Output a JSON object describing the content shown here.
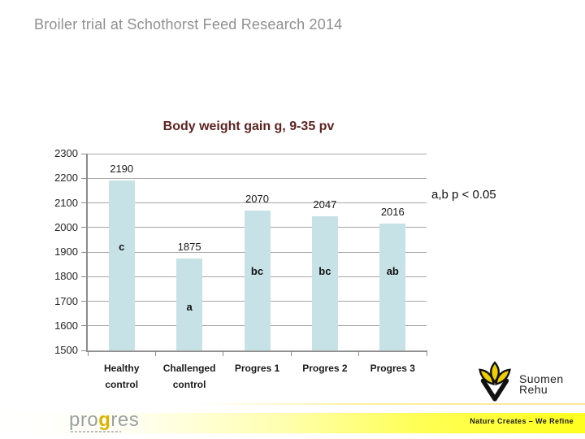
{
  "slide": {
    "title": "Broiler trial at Schothorst Feed Research 2014"
  },
  "chart_data": {
    "type": "bar",
    "title": "Body weight gain g, 9-35 pv",
    "categories": [
      "Healthy control",
      "Challenged control",
      "Progres 1",
      "Progres 2",
      "Progres 3"
    ],
    "category_lines": [
      [
        "Healthy",
        "control"
      ],
      [
        "Challenged",
        "control"
      ],
      [
        "Progres 1"
      ],
      [
        "Progres 2"
      ],
      [
        "Progres 3"
      ]
    ],
    "values": [
      2190,
      1875,
      2070,
      2047,
      2016
    ],
    "bar_labels": [
      "2190",
      "1875",
      "2070",
      "2047",
      "2016"
    ],
    "significance_letters": [
      "c",
      "a",
      "bc",
      "bc",
      "ab"
    ],
    "letter_y_values": [
      1920,
      1675,
      1820,
      1820,
      1820
    ],
    "ylim": [
      1500,
      2300
    ],
    "yticks": [
      2300,
      2200,
      2100,
      2000,
      1900,
      1800,
      1700,
      1600,
      1500
    ],
    "grid": true,
    "legend": "none",
    "bar_color": "#c7e2e6",
    "annotation": "a,b p < 0.05",
    "xlabel": "",
    "ylabel": ""
  },
  "footer": {
    "progres": {
      "pro": "pro",
      "g": "g",
      "res": "res"
    },
    "banner_text": "Nature Creates – We Refine",
    "suomen_rehu_line1": "Suomen",
    "suomen_rehu_line2": "Rehu"
  }
}
